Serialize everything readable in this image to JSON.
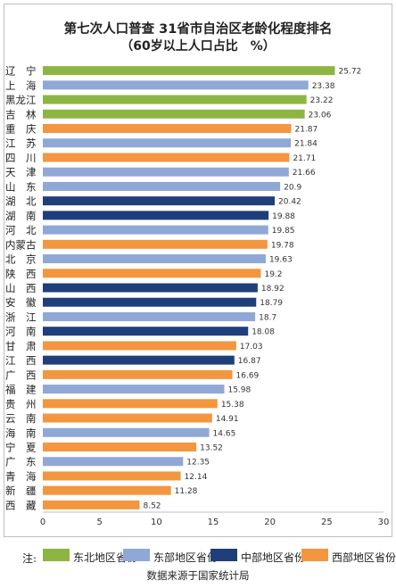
{
  "chart_data": {
    "type": "bar",
    "orientation": "horizontal",
    "title": "第七次人口普查 31省市自治区老龄化程度排名",
    "subtitle": "（60岁以上人口占比　%）",
    "xlim": [
      0,
      30
    ],
    "xticks": [
      0,
      5,
      10,
      15,
      20,
      25,
      30
    ],
    "grid": false,
    "colors": {
      "northeast": "#8db542",
      "east": "#8fa8d6",
      "central": "#1f3f7a",
      "west": "#f39640"
    },
    "categories": [
      "辽　宁",
      "上　海",
      "黑龙江",
      "吉　林",
      "重　庆",
      "江　苏",
      "四　川",
      "天　津",
      "山　东",
      "湖　北",
      "湖　南",
      "河　北",
      "内蒙古",
      "北　京",
      "陕　西",
      "山　西",
      "安　徽",
      "浙　江",
      "河　南",
      "甘　肃",
      "江　西",
      "广　西",
      "福　建",
      "贵　州",
      "云　南",
      "海　南",
      "宁　夏",
      "广　东",
      "青　海",
      "新　疆",
      "西　藏"
    ],
    "values": [
      25.72,
      23.38,
      23.22,
      23.06,
      21.87,
      21.84,
      21.71,
      21.66,
      20.9,
      20.42,
      19.88,
      19.85,
      19.78,
      19.63,
      19.2,
      18.92,
      18.79,
      18.7,
      18.08,
      17.03,
      16.87,
      16.69,
      15.98,
      15.38,
      14.91,
      14.65,
      13.52,
      12.35,
      12.14,
      11.28,
      8.52
    ],
    "value_labels": [
      "25.72",
      "23.38",
      "23.22",
      "23.06",
      "21.87",
      "21.84",
      "21.71",
      "21.66",
      "20.9",
      "20.42",
      "19.88",
      "19.85",
      "19.78",
      "19.63",
      "19.2",
      "18.92",
      "18.79",
      "18.7",
      "18.08",
      "17.03",
      "16.87",
      "16.69",
      "15.98",
      "15.38",
      "14.91",
      "14.65",
      "13.52",
      "12.35",
      "12.14",
      "11.28",
      "8.52"
    ],
    "groups": [
      "northeast",
      "east",
      "northeast",
      "northeast",
      "west",
      "east",
      "west",
      "east",
      "east",
      "central",
      "central",
      "east",
      "west",
      "east",
      "west",
      "central",
      "central",
      "east",
      "central",
      "west",
      "central",
      "west",
      "east",
      "west",
      "west",
      "east",
      "west",
      "east",
      "west",
      "west",
      "west"
    ],
    "legend_position": "bottom"
  },
  "legend": {
    "lead": "注:",
    "items": [
      {
        "key": "northeast",
        "label": "东北地区省份"
      },
      {
        "key": "east",
        "label": "东部地区省份"
      },
      {
        "key": "central",
        "label": "中部地区省份"
      },
      {
        "key": "west",
        "label": "西部地区省份"
      }
    ]
  },
  "source": "数据来源于国家统计局"
}
